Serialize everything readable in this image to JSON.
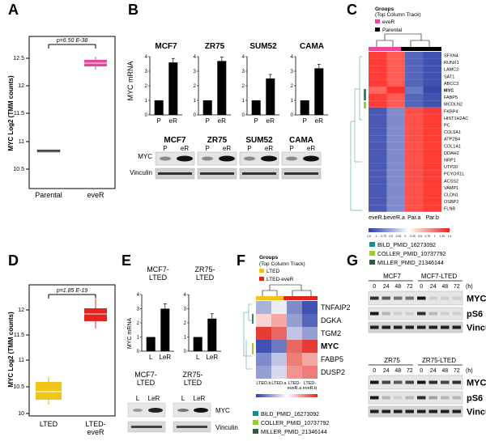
{
  "panels": {
    "A": {
      "letter": "A",
      "ylabel": "MYC Log2 (TMM counts)",
      "pvalue": "p=6.50 E-38",
      "yticks": [
        "10.5",
        "11",
        "11.5",
        "12",
        "12.5"
      ],
      "groups": [
        "Parental",
        "eveR"
      ],
      "colors": {
        "eveR": "#e8479b",
        "parental": "#555555"
      }
    },
    "B": {
      "letter": "B",
      "ylabel": "MYC mRNA",
      "lines": [
        "MCF7",
        "ZR75",
        "SUM52",
        "CAMA"
      ],
      "xcats": [
        "P",
        "eR"
      ],
      "blot_rows": [
        "MYC",
        "Vinculin"
      ]
    },
    "C": {
      "letter": "C",
      "legend_title": "Groups",
      "legend_subtitle": "(Top Column Track)",
      "legend_items": [
        "eveR",
        "Parental"
      ],
      "genes": [
        "SFXN4",
        "RUNX1",
        "LAMC2",
        "SAT1",
        "ABCC3",
        "MYC",
        "FABP5",
        "MCOLN2",
        "FKBP4",
        "HIST1H2AC",
        "PC",
        "COL5A1",
        "ATP2B4",
        "COL1A1",
        "DDAH2",
        "NRP1",
        "UTP20",
        "PCYOX1L",
        "ACSS2",
        "VAMP1",
        "CLDN1",
        "OSBP2",
        "FLNB"
      ],
      "columns": [
        "eveR.b",
        "eveR.a",
        "Par.a",
        "Par.b"
      ],
      "scale_ticks": [
        "-1.5",
        "-1",
        "-0.75",
        "-0.5",
        "-0.25",
        "0",
        "0.25",
        "0.5",
        "0.75",
        "1",
        "1.25",
        "1.5"
      ],
      "pathways": [
        "BILD_PMID_16273092",
        "COLLER_PMID_10737792",
        "MILLER_PMID_21346144"
      ]
    },
    "D": {
      "letter": "D",
      "ylabel": "MYC Log2 (TMM counts)",
      "pvalue": "p=1.85 E-19",
      "yticks": [
        "10",
        "10.5",
        "11",
        "11.5",
        "12"
      ],
      "groups": [
        "LTED",
        "LTED-\neveR"
      ]
    },
    "E": {
      "letter": "E",
      "ylabel": "MYC mRNA",
      "lines": [
        "MCF7-\nLTED",
        "ZR75-\nLTED"
      ],
      "xcats": [
        "L",
        "LeR"
      ],
      "blot_rows": [
        "MYC",
        "Vinculin"
      ]
    },
    "F": {
      "letter": "F",
      "legend_title": "Groups",
      "legend_subtitle": "(Top Column Track)",
      "legend_items": [
        "LTED",
        "LTED-eveR"
      ],
      "genes": [
        "TNFAIP2",
        "DGKA",
        "TGM2",
        "MYC",
        "FABP5",
        "DUSP2"
      ],
      "columns": [
        "LTED.b",
        "LTED.a",
        "LTED-\neveR.a",
        "LTED-\neveR.b"
      ],
      "pathways": [
        "BILD_PMID_16273092",
        "COLLER_PMID_10737792",
        "MILLER_PMID_21346144"
      ]
    },
    "G": {
      "letter": "G",
      "lines": [
        "MCF7",
        "MCF7-LTED",
        "ZR75",
        "ZR75-LTED"
      ],
      "timepoints": [
        "0",
        "24",
        "48",
        "72",
        "0",
        "24",
        "48",
        "72"
      ],
      "unit": "(h)",
      "blot_rows": [
        "MYC",
        "pS6",
        "Vinculin"
      ]
    }
  },
  "chart_data": [
    {
      "type": "bar",
      "panel": "B",
      "categories": [
        "P",
        "eR"
      ],
      "series": [
        {
          "name": "MCF7",
          "values": [
            1,
            3.6
          ]
        },
        {
          "name": "ZR75",
          "values": [
            1,
            3.7
          ]
        },
        {
          "name": "SUM52",
          "values": [
            1,
            2.5
          ]
        },
        {
          "name": "CAMA",
          "values": [
            1,
            3.2
          ]
        }
      ]
    },
    {
      "type": "bar",
      "panel": "E",
      "categories": [
        "L",
        "LeR"
      ],
      "series": [
        {
          "name": "MCF7-LTED",
          "values": [
            1,
            3.0
          ]
        },
        {
          "name": "ZR75-LTED",
          "values": [
            1,
            2.3
          ]
        }
      ]
    }
  ]
}
